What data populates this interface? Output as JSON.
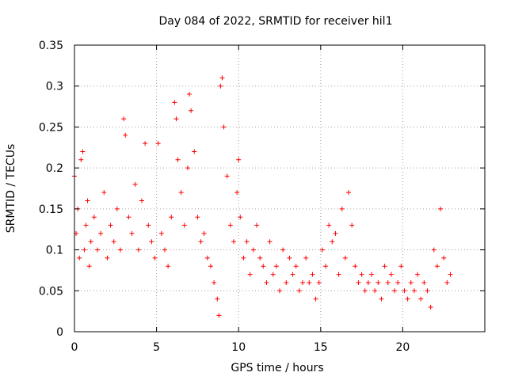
{
  "chart_data": {
    "type": "scatter",
    "title": "Day 084 of 2022, SRMTID for receiver hil1",
    "xlabel": "GPS time / hours",
    "ylabel": "SRMTID / TECUs",
    "xlim": [
      0,
      25
    ],
    "ylim": [
      0,
      0.35
    ],
    "xticks": [
      0,
      5,
      10,
      15,
      20
    ],
    "xtick_labels": [
      "0",
      "5",
      "10",
      "15",
      "20"
    ],
    "yticks": [
      0,
      0.05,
      0.1,
      0.15,
      0.2,
      0.25,
      0.3,
      0.35
    ],
    "ytick_labels": [
      "0",
      "0.05",
      "0.1",
      "0.15",
      "0.2",
      "0.25",
      "0.3",
      "0.35"
    ],
    "grid": true,
    "marker": "+",
    "color": "#ff0000",
    "series": [
      {
        "name": "SRMTID",
        "x": [
          0.0,
          0.1,
          0.2,
          0.3,
          0.4,
          0.5,
          0.6,
          0.7,
          0.8,
          0.9,
          1.0,
          1.2,
          1.4,
          1.6,
          1.8,
          2.0,
          2.2,
          2.4,
          2.6,
          2.8,
          3.0,
          3.1,
          3.3,
          3.5,
          3.7,
          3.9,
          4.1,
          4.3,
          4.5,
          4.7,
          4.9,
          5.1,
          5.3,
          5.5,
          5.7,
          5.9,
          6.1,
          6.2,
          6.3,
          6.5,
          6.7,
          6.9,
          7.0,
          7.1,
          7.3,
          7.5,
          7.7,
          7.9,
          8.1,
          8.3,
          8.5,
          8.7,
          8.8,
          8.9,
          9.0,
          9.1,
          9.3,
          9.5,
          9.7,
          9.9,
          10.0,
          10.1,
          10.3,
          10.5,
          10.7,
          10.9,
          11.1,
          11.3,
          11.5,
          11.7,
          11.9,
          12.1,
          12.3,
          12.5,
          12.7,
          12.9,
          13.1,
          13.3,
          13.5,
          13.7,
          13.9,
          14.1,
          14.3,
          14.5,
          14.7,
          14.9,
          15.1,
          15.3,
          15.5,
          15.7,
          15.9,
          16.1,
          16.3,
          16.5,
          16.7,
          16.9,
          17.1,
          17.3,
          17.5,
          17.7,
          17.9,
          18.1,
          18.3,
          18.5,
          18.7,
          18.9,
          19.1,
          19.3,
          19.5,
          19.7,
          19.9,
          20.1,
          20.3,
          20.5,
          20.7,
          20.9,
          21.1,
          21.3,
          21.5,
          21.7,
          21.9,
          22.1,
          22.3,
          22.5,
          22.7,
          22.9
        ],
        "y": [
          0.19,
          0.12,
          0.15,
          0.09,
          0.21,
          0.22,
          0.1,
          0.13,
          0.16,
          0.08,
          0.11,
          0.14,
          0.1,
          0.12,
          0.17,
          0.09,
          0.13,
          0.11,
          0.15,
          0.1,
          0.26,
          0.24,
          0.14,
          0.12,
          0.18,
          0.1,
          0.16,
          0.23,
          0.13,
          0.11,
          0.09,
          0.23,
          0.12,
          0.1,
          0.08,
          0.14,
          0.28,
          0.26,
          0.21,
          0.17,
          0.13,
          0.2,
          0.29,
          0.27,
          0.22,
          0.14,
          0.11,
          0.12,
          0.09,
          0.08,
          0.06,
          0.04,
          0.02,
          0.3,
          0.31,
          0.25,
          0.19,
          0.13,
          0.11,
          0.17,
          0.21,
          0.14,
          0.09,
          0.11,
          0.07,
          0.1,
          0.13,
          0.09,
          0.08,
          0.06,
          0.11,
          0.07,
          0.08,
          0.05,
          0.1,
          0.06,
          0.09,
          0.07,
          0.08,
          0.05,
          0.06,
          0.09,
          0.06,
          0.07,
          0.04,
          0.06,
          0.1,
          0.08,
          0.13,
          0.11,
          0.12,
          0.07,
          0.15,
          0.09,
          0.17,
          0.13,
          0.08,
          0.06,
          0.07,
          0.05,
          0.06,
          0.07,
          0.05,
          0.06,
          0.04,
          0.08,
          0.06,
          0.07,
          0.05,
          0.06,
          0.08,
          0.05,
          0.04,
          0.06,
          0.05,
          0.07,
          0.04,
          0.06,
          0.05,
          0.03,
          0.1,
          0.08,
          0.15,
          0.09,
          0.06,
          0.07
        ]
      }
    ]
  }
}
